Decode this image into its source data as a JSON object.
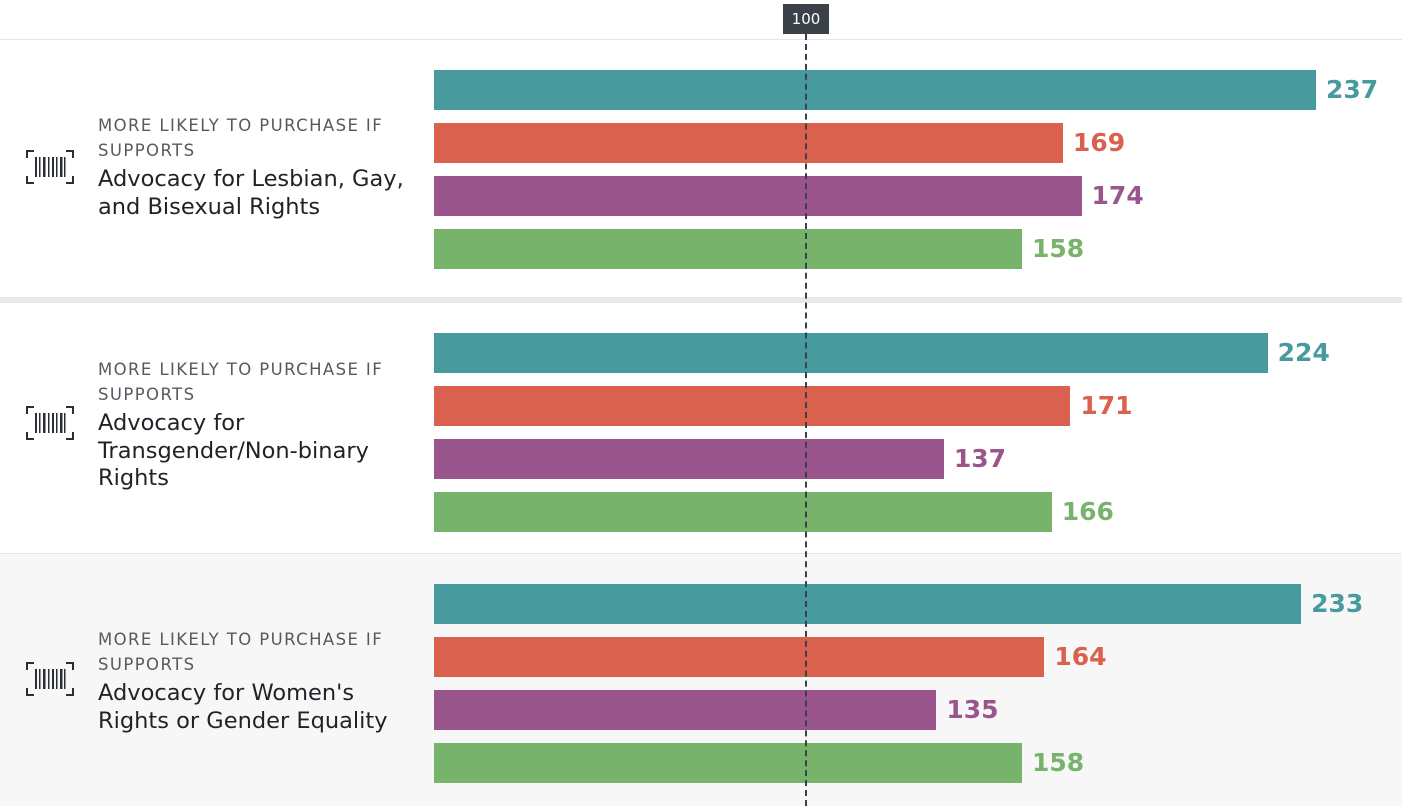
{
  "chart_data": {
    "type": "bar",
    "orientation": "horizontal",
    "reference_line": {
      "value": 100,
      "label": "100"
    },
    "colors": [
      "#479b9f",
      "#d9614d",
      "#9a568c",
      "#77b36b"
    ],
    "groups": [
      {
        "kicker": "MORE LIKELY TO PURCHASE IF SUPPORTS",
        "title": "Advocacy for Lesbian, Gay, and Bisexual Rights",
        "values": [
          237,
          169,
          174,
          158
        ]
      },
      {
        "kicker": "MORE LIKELY TO PURCHASE IF SUPPORTS",
        "title": "Advocacy for Transgender/Non-binary Rights",
        "values": [
          224,
          171,
          137,
          166
        ]
      },
      {
        "kicker": "MORE LIKELY TO PURCHASE IF SUPPORTS",
        "title": "Advocacy for Women's Rights or Gender Equality",
        "values": [
          233,
          164,
          135,
          158
        ]
      }
    ]
  },
  "icons": {
    "group_icon": "barcode-icon"
  }
}
